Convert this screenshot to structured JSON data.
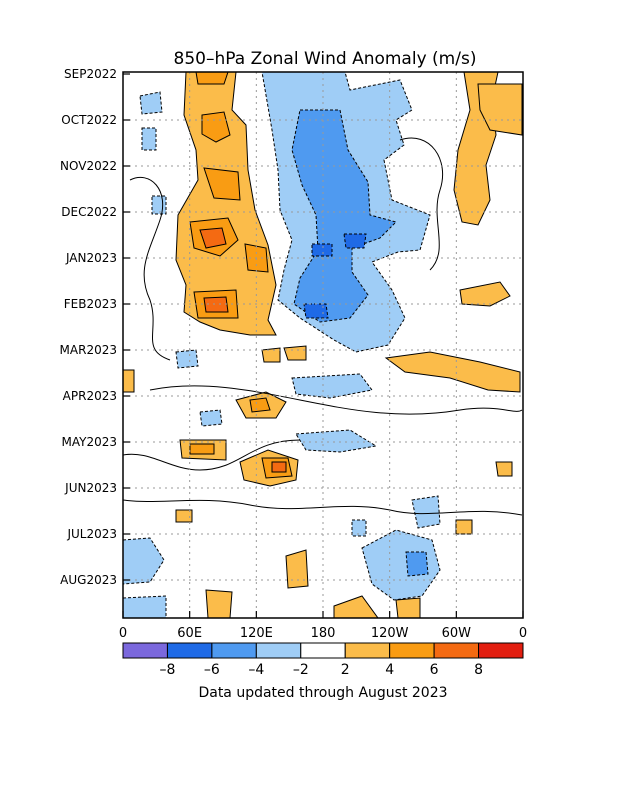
{
  "chart_data": {
    "type": "heatmap",
    "title": "850–hPa Zonal Wind Anomaly (m/s)",
    "footer": "Data updated through August 2023",
    "xlabel": "",
    "ylabel": "",
    "x_ticks": [
      "0",
      "60E",
      "120E",
      "180",
      "120W",
      "60W",
      "0"
    ],
    "x_range": [
      0,
      360
    ],
    "y_ticks": [
      "SEP2022",
      "OCT2022",
      "NOV2022",
      "DEC2022",
      "JAN2023",
      "FEB2023",
      "MAR2023",
      "APR2023",
      "MAY2023",
      "JUN2023",
      "JUL2023",
      "AUG2023"
    ],
    "grid": true,
    "colorbar": {
      "tick_labels": [
        "–8",
        "–6",
        "–4",
        "–2",
        "2",
        "4",
        "6",
        "8"
      ],
      "bins": [
        {
          "range": "< -8",
          "color": "#7b68dd"
        },
        {
          "range": "-8 to -6",
          "color": "#1f6ae6"
        },
        {
          "range": "-6 to -4",
          "color": "#4f9af0"
        },
        {
          "range": "-4 to -2",
          "color": "#9fcdf6"
        },
        {
          "range": "-2 to 2",
          "color": "#ffffff"
        },
        {
          "range": "2 to 4",
          "color": "#fbbc4a"
        },
        {
          "range": "4 to 6",
          "color": "#f99c13"
        },
        {
          "range": "6 to 8",
          "color": "#f46a12"
        },
        {
          "range": "> 8",
          "color": "#e21e10"
        }
      ]
    },
    "anomaly_regions": [
      {
        "name": "westerly-indian-ocean-oct-feb",
        "lon": [
          50,
          110
        ],
        "time": [
          "SEP2022",
          "FEB2023"
        ],
        "level": "4 to 8",
        "sign": "positive"
      },
      {
        "name": "easterly-central-pacific-sep-feb",
        "lon": [
          140,
          240
        ],
        "time": [
          "SEP2022",
          "MAR2023"
        ],
        "level": "-2 to -6",
        "sign": "negative"
      },
      {
        "name": "westerly-east-pacific-sep-feb",
        "lon": [
          300,
          350
        ],
        "time": [
          "SEP2022",
          "FEB2023"
        ],
        "level": "2 to 4",
        "sign": "positive"
      },
      {
        "name": "westerly-eastern-pacific-mar",
        "lon": [
          240,
          340
        ],
        "time": [
          "MAR2023",
          "APR2023"
        ],
        "level": "2 to 4",
        "sign": "positive"
      },
      {
        "name": "westerly-west-pacific-may-jun",
        "lon": [
          110,
          155
        ],
        "time": [
          "MAY2023",
          "JUN2023"
        ],
        "level": "2 to 6",
        "sign": "positive"
      },
      {
        "name": "westerly-central-pacific-aug",
        "lon": [
          190,
          260
        ],
        "time": [
          "JUL2023",
          "AUG2023"
        ],
        "level": "2 to 4",
        "sign": "positive"
      },
      {
        "name": "easterly-west-pacific-jul-aug",
        "lon": [
          220,
          280
        ],
        "time": [
          "JUN2023",
          "AUG2023"
        ],
        "level": "-2 to -4",
        "sign": "negative"
      }
    ]
  }
}
